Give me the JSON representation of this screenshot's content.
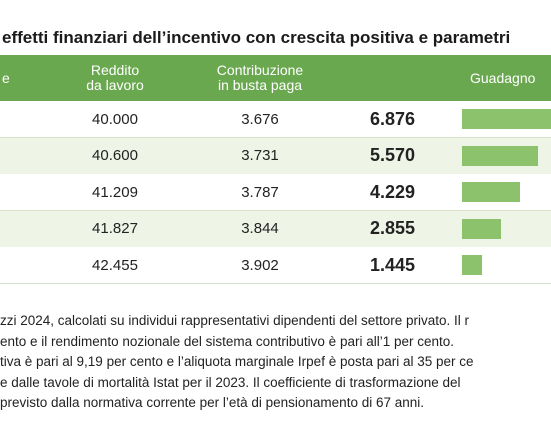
{
  "title": "effetti finanziari dell’incentivo con crescita positiva e parametri",
  "table": {
    "header": [
      "e",
      "Reddito\nda lavoro",
      "Contribuzione\nin busta paga",
      "Guadagno"
    ],
    "rows": [
      [
        "40.000",
        "3.676",
        {
          "value": 6876,
          "label": "6.876"
        }
      ],
      [
        "40.600",
        "3.731",
        {
          "value": 5570,
          "label": "5.570"
        }
      ],
      [
        "41.209",
        "3.787",
        {
          "value": 4229,
          "label": "4.229"
        }
      ],
      [
        "41.827",
        "3.844",
        {
          "value": 2855,
          "label": "2.855"
        }
      ],
      [
        "42.455",
        "3.902",
        {
          "value": 1445,
          "label": "1.445"
        }
      ]
    ]
  },
  "notes": [
    "zzi 2024, calcolati su individui rappresentativi dipendenti del settore privato. Il r",
    "ento e il rendimento nozionale del sistema contributivo è pari all’1 per cento.",
    "tiva è pari al 9,19 per cento e l’aliquota marginale Irpef è posta pari al 35 per ce",
    "e dalle tavole di mortalità Istat per il 2023. Il coefficiente di trasformazione del",
    "previsto dalla normativa corrente per l’età di pensionamento di 67 anni."
  ]
}
